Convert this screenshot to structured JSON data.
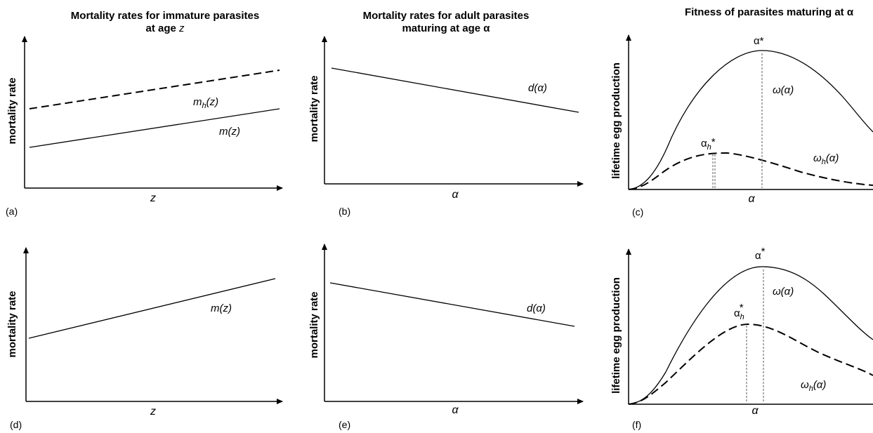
{
  "titles": {
    "col1": "Mortality rates for immature parasites",
    "col1_line2": "at age",
    "col1_var": "z",
    "col2": "Mortality rates for adult parasites",
    "col2_line2": "maturing at age α",
    "col3": "Fitness of parasites maturing at α"
  },
  "axes": {
    "mortality_label": "mortality rate",
    "fitness_label": "lifetime egg production",
    "x_z": "z",
    "x_alpha": "α"
  },
  "panels": {
    "a": {
      "label": "(a)",
      "curve_mh": "m",
      "curve_mh_sub": "h",
      "curve_mh_arg": "(z)",
      "curve_m": "m(z)"
    },
    "b": {
      "label": "(b)",
      "curve_d": "d(α)"
    },
    "c": {
      "label": "(c)",
      "opt": "α*",
      "opt_h": "α",
      "opt_h_sub": "h",
      "opt_h_sup": "*",
      "curve_w": "ω(α)",
      "curve_wh": "ω",
      "curve_wh_sub": "h",
      "curve_wh_arg": "(α)"
    },
    "d": {
      "label": "(d)",
      "curve_m": "m(z)"
    },
    "e": {
      "label": "(e)",
      "curve_d": "d(α)"
    },
    "f": {
      "label": "(f)",
      "opt": "α",
      "opt_sup": "*",
      "opt_h": "α",
      "opt_h_sub": "h",
      "opt_h_sup": "*",
      "curve_w": "ω(α)",
      "curve_wh": "ω",
      "curve_wh_sub": "h",
      "curve_wh_arg": "(α)"
    }
  }
}
